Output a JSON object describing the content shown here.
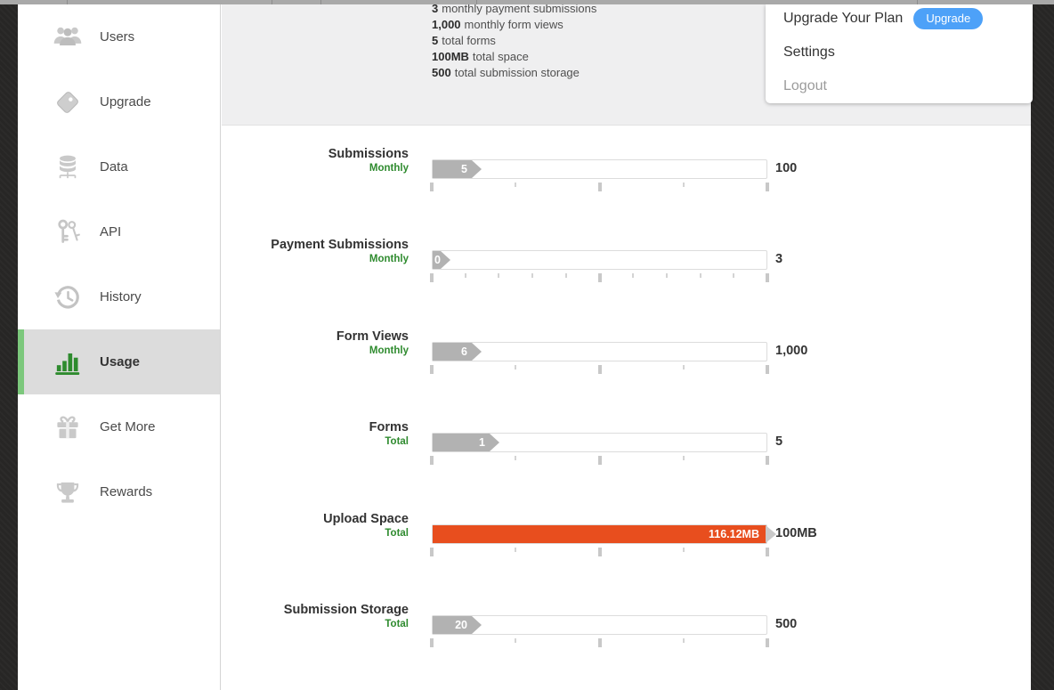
{
  "sidebar": {
    "items": [
      {
        "label": "Users",
        "icon": "users",
        "selected": false
      },
      {
        "label": "Upgrade",
        "icon": "tag",
        "selected": false
      },
      {
        "label": "Data",
        "icon": "database",
        "selected": false
      },
      {
        "label": "API",
        "icon": "keys",
        "selected": false
      },
      {
        "label": "History",
        "icon": "history",
        "selected": false
      },
      {
        "label": "Usage",
        "icon": "bar-chart",
        "selected": true
      },
      {
        "label": "Get More",
        "icon": "gift",
        "selected": false
      },
      {
        "label": "Rewards",
        "icon": "trophy",
        "selected": false
      }
    ],
    "accent_color": "#7cc87c",
    "selected_bg": "#dcdcdc",
    "selected_icon_color": "#2e8b2e"
  },
  "plan_summary": {
    "lines": [
      {
        "value": "3",
        "text": "monthly payment submissions"
      },
      {
        "value": "1,000",
        "text": "monthly form views"
      },
      {
        "value": "5",
        "text": "total forms"
      },
      {
        "value": "100MB",
        "text": "total space"
      },
      {
        "value": "500",
        "text": "total submission storage"
      }
    ]
  },
  "account_menu": {
    "upgrade_item": {
      "label": "Upgrade Your Plan",
      "button": "Upgrade",
      "button_color": "#4da1f8"
    },
    "settings_label": "Settings",
    "logout_label": "Logout"
  },
  "usage": {
    "rows": [
      {
        "title": "Submissions",
        "period": "Monthly",
        "used_label": "5",
        "limit_label": "100",
        "percent": 5,
        "over_limit": false,
        "tick_step_percent": 25
      },
      {
        "title": "Payment Submissions",
        "period": "Monthly",
        "used_label": "0",
        "limit_label": "3",
        "percent": 0,
        "over_limit": false,
        "tick_step_percent": 10
      },
      {
        "title": "Form Views",
        "period": "Monthly",
        "used_label": "6",
        "limit_label": "1,000",
        "percent": 0.6,
        "over_limit": false,
        "tick_step_percent": 25
      },
      {
        "title": "Forms",
        "period": "Total",
        "used_label": "1",
        "limit_label": "5",
        "percent": 20,
        "over_limit": false,
        "tick_step_percent": 25
      },
      {
        "title": "Upload Space",
        "period": "Total",
        "used_label": "116.12MB",
        "limit_label": "100MB",
        "percent": 100,
        "over_limit": true,
        "tick_step_percent": 25
      },
      {
        "title": "Submission Storage",
        "period": "Total",
        "used_label": "20",
        "limit_label": "500",
        "percent": 4,
        "over_limit": false,
        "tick_step_percent": 25
      }
    ],
    "colors": {
      "fill": "#b2b2b2",
      "over_fill": "#e84e1e",
      "period_text": "#2f8b2f"
    }
  }
}
